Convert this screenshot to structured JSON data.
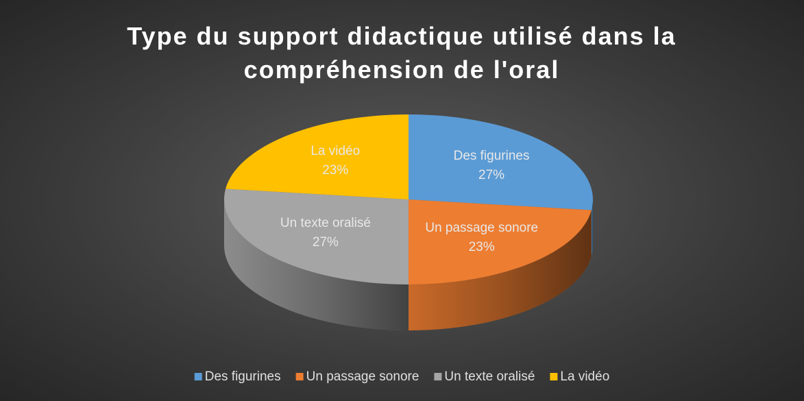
{
  "chart_data": {
    "type": "pie",
    "title": "Type du support didactique utilisé dans la compréhension de l'oral",
    "categories": [
      "Des figurines",
      "Un passage sonore",
      "Un texte oralisé",
      "La vidéo"
    ],
    "values": [
      27,
      23,
      27,
      23
    ],
    "value_labels": [
      "27%",
      "23%",
      "27%",
      "23%"
    ],
    "colors": [
      "#5b9bd5",
      "#ed7d31",
      "#a5a5a5",
      "#ffc000"
    ],
    "legend": "bottom"
  }
}
